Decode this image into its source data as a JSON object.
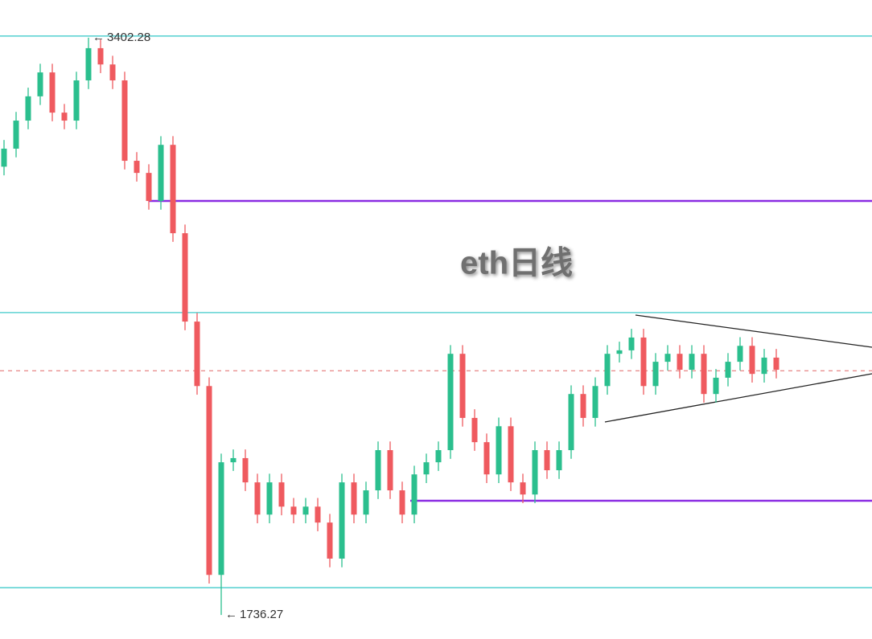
{
  "chart_data": {
    "type": "candlestick",
    "watermark": "eth日线",
    "ylim": [
      1667,
      3511
    ],
    "up_color": "#2bbf8e",
    "down_color": "#ef5a5f",
    "open": [
      3030,
      3082,
      3163,
      3233,
      3302,
      3186,
      3163,
      3279,
      3372,
      3325,
      3279,
      3047,
      3012,
      2931,
      3093,
      2838,
      2583,
      2397,
      1852,
      2177,
      2189,
      2119,
      2026,
      2119,
      2049,
      2026,
      2049,
      2003,
      1899,
      2119,
      2026,
      2096,
      2212,
      2096,
      2026,
      2142,
      2177,
      2212,
      2490,
      2305,
      2235,
      2142,
      2281,
      2119,
      2084,
      2212,
      2154,
      2212,
      2374,
      2305,
      2397,
      2490,
      2500,
      2537,
      2397,
      2467,
      2490,
      2444,
      2490,
      2374,
      2421,
      2467,
      2513,
      2432,
      2479
    ],
    "high": [
      3107,
      3188,
      3258,
      3327,
      3327,
      3211,
      3304,
      3402.28,
      3397,
      3350,
      3304,
      3072,
      3037,
      3118,
      3118,
      2863,
      2608,
      2422,
      2202,
      2214,
      2214,
      2144,
      2144,
      2144,
      2074,
      2074,
      2074,
      2028,
      2144,
      2144,
      2121,
      2237,
      2237,
      2121,
      2167,
      2202,
      2237,
      2515,
      2515,
      2330,
      2260,
      2306,
      2306,
      2144,
      2237,
      2237,
      2237,
      2399,
      2399,
      2422,
      2515,
      2525,
      2562,
      2562,
      2492,
      2515,
      2515,
      2515,
      2515,
      2446,
      2492,
      2538,
      2538,
      2504,
      2504
    ],
    "low": [
      3005,
      3057,
      3138,
      3208,
      3161,
      3138,
      3138,
      3254,
      3300,
      3254,
      3022,
      2987,
      2906,
      2906,
      2813,
      2558,
      2372,
      1827,
      1736.27,
      2152,
      2094,
      2001,
      2001,
      2024,
      2001,
      2001,
      1978,
      1874,
      1874,
      2001,
      2001,
      2071,
      2071,
      2001,
      2001,
      2117,
      2152,
      2187,
      2280,
      2210,
      2117,
      2117,
      2094,
      2059,
      2059,
      2129,
      2129,
      2187,
      2280,
      2280,
      2372,
      2465,
      2475,
      2372,
      2372,
      2442,
      2419,
      2419,
      2349,
      2349,
      2396,
      2442,
      2407,
      2407,
      2419
    ],
    "close": [
      3082,
      3163,
      3233,
      3302,
      3186,
      3163,
      3279,
      3372,
      3325,
      3279,
      3047,
      3012,
      2931,
      3093,
      2838,
      2583,
      2397,
      1852,
      2177,
      2189,
      2119,
      2026,
      2119,
      2049,
      2026,
      2049,
      2003,
      1899,
      2119,
      2026,
      2096,
      2212,
      2096,
      2026,
      2142,
      2177,
      2212,
      2490,
      2305,
      2235,
      2142,
      2281,
      2119,
      2084,
      2212,
      2154,
      2212,
      2374,
      2305,
      2397,
      2490,
      2500,
      2537,
      2397,
      2467,
      2490,
      2444,
      2490,
      2374,
      2421,
      2467,
      2513,
      2432,
      2479,
      2444
    ],
    "annotations": [
      {
        "value": 3402.28,
        "label": "3402.28",
        "index": 7
      },
      {
        "value": 1736.27,
        "label": "1736.27",
        "index": 18
      }
    ],
    "levels": [
      {
        "value": 3407,
        "color": "#5fd3d3"
      },
      {
        "value": 2609,
        "color": "#5fd3d3"
      },
      {
        "value": 1815,
        "color": "#5fd3d3"
      },
      {
        "value": 2931,
        "color": "#8a2be2"
      },
      {
        "value": 2066,
        "color": "#8a2be2"
      },
      {
        "value": 2441,
        "color": "#e06666",
        "dashed": true
      }
    ]
  }
}
